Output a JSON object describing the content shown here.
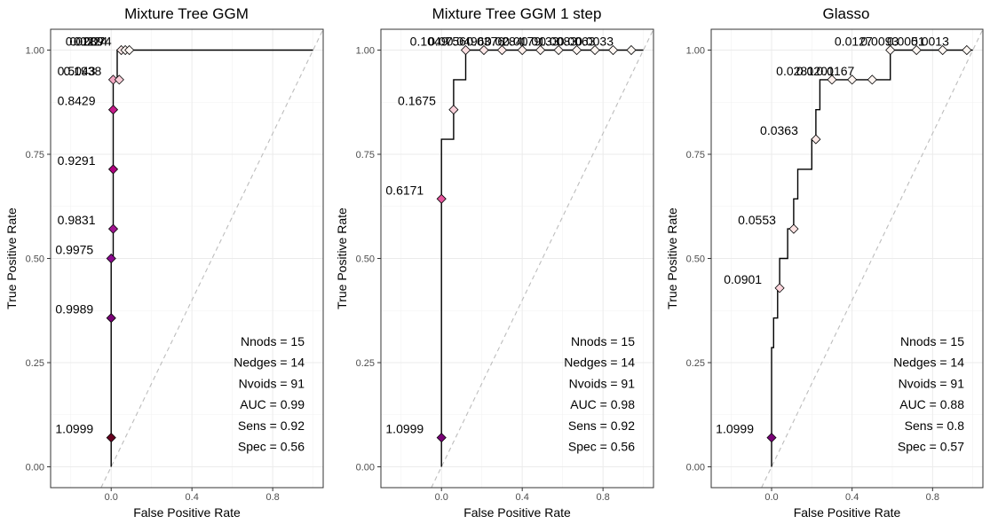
{
  "chart_data": [
    {
      "type": "line",
      "title": "Mixture Tree GGM",
      "xlabel": "False Positive Rate",
      "ylabel": "True Positive Rate",
      "xlim": [
        -0.3,
        1.05
      ],
      "ylim": [
        -0.05,
        1.05
      ],
      "x_ticks": [
        "0.0",
        "0.4",
        "0.8"
      ],
      "x_tick_values": [
        0,
        0.4,
        0.8
      ],
      "y_ticks": [
        "0.00",
        "0.25",
        "0.50",
        "0.75",
        "1.00"
      ],
      "y_tick_values": [
        0,
        0.25,
        0.5,
        0.75,
        1.0
      ],
      "grid": true,
      "reference_line": "diagonal dashed",
      "curve": {
        "x": [
          0,
          0,
          0.01,
          0.01,
          0.03,
          0.03,
          0.06,
          0.06,
          1.0
        ],
        "y": [
          0,
          0.5,
          0.5,
          0.93,
          0.93,
          1.0,
          1.0,
          1.0,
          1.0
        ]
      },
      "thresholds": [
        {
          "x": 0.0,
          "y": 0.07,
          "label": "1.0999",
          "color": "#67001f"
        },
        {
          "x": 0.0,
          "y": 0.357,
          "label": "0.9989",
          "color": "#7a0177"
        },
        {
          "x": 0.0,
          "y": 0.5,
          "label": "0.9975",
          "color": "#8b0a8f"
        },
        {
          "x": 0.01,
          "y": 0.571,
          "label": "0.9831",
          "color": "#a0148f"
        },
        {
          "x": 0.01,
          "y": 0.714,
          "label": "0.9291",
          "color": "#ae017e"
        },
        {
          "x": 0.01,
          "y": 0.857,
          "label": "0.8429",
          "color": "#c51b8a"
        },
        {
          "x": 0.01,
          "y": 0.929,
          "label": "0.5043",
          "color": "#f3a6c2"
        },
        {
          "x": 0.04,
          "y": 0.929,
          "label": "0.1938",
          "color": "#f8cfd9"
        },
        {
          "x": 0.05,
          "y": 1.0,
          "label": "0.0289",
          "color": "#fce8e8"
        },
        {
          "x": 0.07,
          "y": 1.0,
          "label": "0.0224",
          "color": "#fff2ee"
        },
        {
          "x": 0.09,
          "y": 1.0,
          "label": "0.0074",
          "color": "#fff7f3"
        }
      ],
      "stats": [
        "Nnods = 15",
        "Nedges = 14",
        "Nvoids = 91",
        "AUC = 0.99",
        "Sens = 0.92",
        "Spec = 0.56"
      ]
    },
    {
      "type": "line",
      "title": "Mixture Tree GGM 1 step",
      "xlabel": "False Positive Rate",
      "ylabel": "True Positive Rate",
      "xlim": [
        -0.3,
        1.05
      ],
      "ylim": [
        -0.05,
        1.05
      ],
      "x_ticks": [
        "0.0",
        "0.4",
        "0.8"
      ],
      "x_tick_values": [
        0,
        0.4,
        0.8
      ],
      "y_ticks": [
        "0.00",
        "0.25",
        "0.50",
        "0.75",
        "1.00"
      ],
      "y_tick_values": [
        0,
        0.25,
        0.5,
        0.75,
        1.0
      ],
      "grid": true,
      "reference_line": "diagonal dashed",
      "curve": {
        "x": [
          0,
          0,
          0.0,
          0.0,
          0.06,
          0.06,
          0.12,
          0.12,
          1.0
        ],
        "y": [
          0,
          0.64,
          0.64,
          0.786,
          0.786,
          0.929,
          0.929,
          1.0,
          1.0
        ]
      },
      "thresholds": [
        {
          "x": 0.0,
          "y": 0.07,
          "label": "1.0999",
          "color": "#7a0177"
        },
        {
          "x": 0.0,
          "y": 0.643,
          "label": "0.6171",
          "color": "#e7559d"
        },
        {
          "x": 0.06,
          "y": 0.857,
          "label": "0.1675",
          "color": "#f8cfd9"
        },
        {
          "x": 0.12,
          "y": 1.0,
          "label": "0.1049",
          "color": "#fbdfe2"
        },
        {
          "x": 0.21,
          "y": 1.0,
          "label": "0.0756",
          "color": "#fce6e6"
        },
        {
          "x": 0.3,
          "y": 1.0,
          "label": "0.0496",
          "color": "#fdeae8"
        },
        {
          "x": 0.4,
          "y": 1.0,
          "label": "0.0376",
          "color": "#fdeeea"
        },
        {
          "x": 0.49,
          "y": 1.0,
          "label": "0.0284",
          "color": "#fef1ed"
        },
        {
          "x": 0.58,
          "y": 1.0,
          "label": "0.0179",
          "color": "#fef3ef"
        },
        {
          "x": 0.67,
          "y": 1.0,
          "label": "0.0133",
          "color": "#fef5f1"
        },
        {
          "x": 0.76,
          "y": 1.0,
          "label": "0.0083",
          "color": "#fff6f2"
        },
        {
          "x": 0.85,
          "y": 1.0,
          "label": "0.0063",
          "color": "#fff7f3"
        },
        {
          "x": 0.94,
          "y": 1.0,
          "label": "0.0033",
          "color": "#fff7f3"
        }
      ],
      "stats": [
        "Nnods = 15",
        "Nedges = 14",
        "Nvoids = 91",
        "AUC = 0.98",
        "Sens = 0.92",
        "Spec = 0.56"
      ]
    },
    {
      "type": "line",
      "title": "Glasso",
      "xlabel": "False Positive Rate",
      "ylabel": "True Positive Rate",
      "xlim": [
        -0.3,
        1.05
      ],
      "ylim": [
        -0.05,
        1.05
      ],
      "x_ticks": [
        "0.0",
        "0.4",
        "0.8"
      ],
      "x_tick_values": [
        0,
        0.4,
        0.8
      ],
      "y_ticks": [
        "0.00",
        "0.25",
        "0.50",
        "0.75",
        "1.00"
      ],
      "y_tick_values": [
        0,
        0.25,
        0.5,
        0.75,
        1.0
      ],
      "grid": true,
      "reference_line": "diagonal dashed",
      "curve": {
        "x": [
          0,
          0,
          0.01,
          0.01,
          0.03,
          0.03,
          0.04,
          0.04,
          0.08,
          0.08,
          0.11,
          0.11,
          0.13,
          0.13,
          0.2,
          0.2,
          0.22,
          0.22,
          0.24,
          0.24,
          0.26,
          0.26,
          0.33,
          0.33,
          0.59,
          0.59,
          1.0
        ],
        "y": [
          0,
          0.286,
          0.286,
          0.357,
          0.357,
          0.429,
          0.429,
          0.5,
          0.5,
          0.571,
          0.571,
          0.643,
          0.643,
          0.714,
          0.714,
          0.786,
          0.786,
          0.857,
          0.857,
          0.929,
          0.929,
          0.929,
          0.929,
          0.929,
          0.929,
          1.0,
          1.0
        ]
      },
      "thresholds": [
        {
          "x": 0.0,
          "y": 0.07,
          "label": "1.0999",
          "color": "#7a0177"
        },
        {
          "x": 0.04,
          "y": 0.429,
          "label": "0.0901",
          "color": "#fcd5dc"
        },
        {
          "x": 0.11,
          "y": 0.571,
          "label": "0.0553",
          "color": "#fde3e3"
        },
        {
          "x": 0.22,
          "y": 0.786,
          "label": "0.0363",
          "color": "#fdeae8"
        },
        {
          "x": 0.3,
          "y": 0.929,
          "label": "0.0281",
          "color": "#fef0ec"
        },
        {
          "x": 0.4,
          "y": 0.929,
          "label": "0.0201",
          "color": "#fef3ef"
        },
        {
          "x": 0.5,
          "y": 0.929,
          "label": "0.0167",
          "color": "#fef4f0"
        },
        {
          "x": 0.59,
          "y": 1.0,
          "label": "0.0127",
          "color": "#fff5f1"
        },
        {
          "x": 0.72,
          "y": 1.0,
          "label": "0.0093",
          "color": "#fff6f2"
        },
        {
          "x": 0.85,
          "y": 1.0,
          "label": "0.0051",
          "color": "#fff7f3"
        },
        {
          "x": 0.97,
          "y": 1.0,
          "label": "0.0013",
          "color": "#fff7f3"
        }
      ],
      "stats": [
        "Nnods = 15",
        "Nedges = 14",
        "Nvoids = 91",
        "AUC = 0.88",
        "Sens = 0.8",
        "Spec = 0.57"
      ]
    }
  ]
}
